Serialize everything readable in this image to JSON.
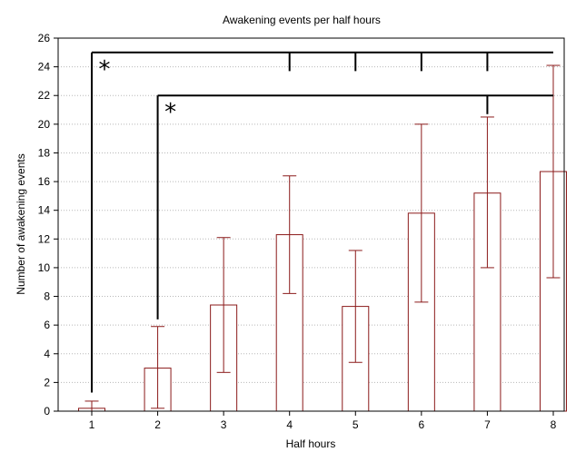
{
  "chart_data": {
    "type": "bar",
    "title": "Awakening events per half hours",
    "xlabel": "Half hours",
    "ylabel": "Number of awakening events",
    "categories": [
      "1",
      "2",
      "3",
      "4",
      "5",
      "6",
      "7",
      "8"
    ],
    "values": [
      0.2,
      3.0,
      7.4,
      12.3,
      7.3,
      13.8,
      15.2,
      16.7
    ],
    "error_low": [
      0.0,
      0.2,
      2.7,
      8.2,
      3.4,
      7.6,
      10.0,
      9.3
    ],
    "error_high": [
      0.7,
      5.9,
      12.1,
      16.4,
      11.2,
      20.0,
      20.5,
      24.1
    ],
    "ylim": [
      0,
      26
    ],
    "yticks": [
      0,
      2,
      4,
      6,
      8,
      10,
      12,
      14,
      16,
      18,
      20,
      22,
      24,
      26
    ],
    "grid": "horizontal dotted",
    "bar_color": "#8b1a1a",
    "annotations": [
      {
        "label": "*",
        "from": "1",
        "to": [
          "4",
          "5",
          "6",
          "7",
          "8"
        ],
        "y": 25
      },
      {
        "label": "*",
        "from": "2",
        "to": [
          "7",
          "8"
        ],
        "y": 22
      }
    ]
  }
}
